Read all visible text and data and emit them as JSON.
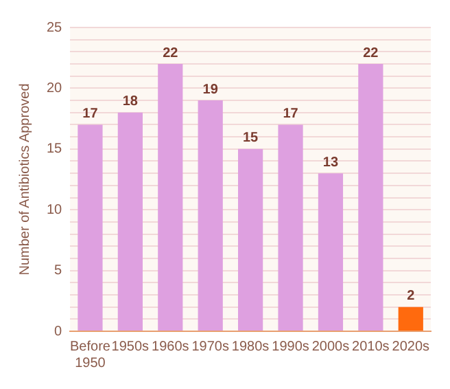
{
  "chart_data": {
    "type": "bar",
    "ylabel": "Number of Antibiotics Approved",
    "categories": [
      "Before\n1950",
      "1950s",
      "1960s",
      "1970s",
      "1980s",
      "1990s",
      "2000s",
      "2010s",
      "2020s"
    ],
    "values": [
      17,
      18,
      22,
      19,
      15,
      17,
      13,
      22,
      2
    ],
    "colors": [
      "#dea0e0",
      "#dea0e0",
      "#dea0e0",
      "#dea0e0",
      "#dea0e0",
      "#dea0e0",
      "#dea0e0",
      "#dea0e0",
      "#ff6a0e"
    ],
    "ylim": [
      0,
      25
    ],
    "yticks": [
      0,
      {
        "value": 1,
        "label": null
      },
      {
        "value": 2,
        "label": null
      },
      {
        "value": 3,
        "label": null
      },
      {
        "value": 4,
        "label": null
      },
      5,
      {
        "value": 6,
        "label": null
      },
      {
        "value": 7,
        "label": null
      },
      {
        "value": 8,
        "label": null
      },
      {
        "value": 9,
        "label": null
      },
      10,
      {
        "value": 11,
        "label": null
      },
      {
        "value": 12,
        "label": null
      },
      {
        "value": 13,
        "label": null
      },
      {
        "value": 14,
        "label": null
      },
      15,
      {
        "value": 16,
        "label": null
      },
      {
        "value": 17,
        "label": null
      },
      {
        "value": 18,
        "label": null
      },
      {
        "value": 19,
        "label": null
      },
      20,
      {
        "value": 21,
        "label": null
      },
      {
        "value": 22,
        "label": null
      },
      {
        "value": 23,
        "label": null
      },
      {
        "value": 24,
        "label": null
      },
      25
    ],
    "grid": "y",
    "data_labels": true,
    "legend": false
  }
}
